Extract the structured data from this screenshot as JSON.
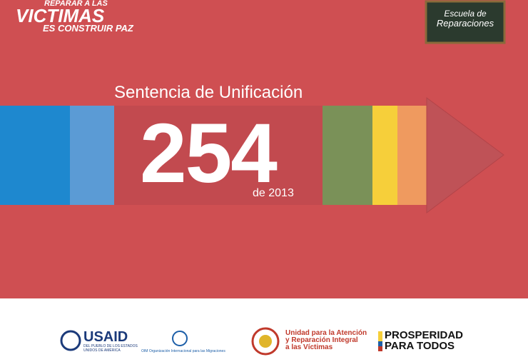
{
  "header": {
    "campaign": [
      "REPARAR A LAS",
      "VICTIMAS",
      "ES CONSTRUIR PAZ"
    ],
    "school": [
      "Escuela de",
      "Reparaciones"
    ]
  },
  "cover": {
    "title": "Sentencia de Unificación",
    "number": "254",
    "year": "de 2013"
  },
  "footer": {
    "usaid": {
      "name": "USAID",
      "tagline": [
        "DEL PUEBLO DE LOS ESTADOS",
        "UNIDOS DE AMÉRICA"
      ]
    },
    "oim": "OIM Organización Internacional para las Migraciones",
    "unidad": [
      "Unidad para la Atención",
      "y Reparación Integral",
      "a las Víctimas"
    ],
    "prosperidad": [
      "PROSPERIDAD",
      "PARA TODOS"
    ]
  }
}
